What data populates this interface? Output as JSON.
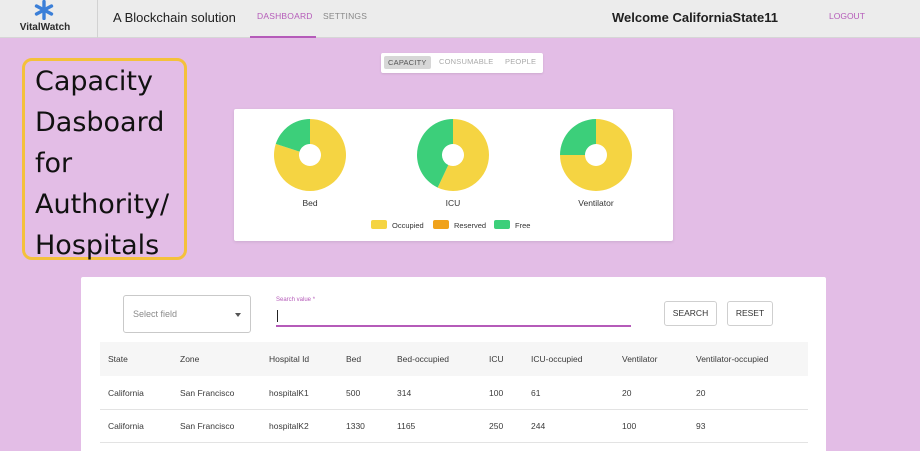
{
  "header": {
    "logo_text": "VitalWatch",
    "subtitle": "A Blockchain solution",
    "tabs": [
      "DASHBOARD",
      "SETTINGS"
    ],
    "welcome": "Welcome CaliforniaState11",
    "logout": "LOGOUT",
    "accent": "#b55bb9"
  },
  "annotation": {
    "lines": [
      "Capacity",
      "Dasboard",
      "for",
      "Authority/",
      "Hospitals"
    ],
    "border_color": "#f4c13b"
  },
  "segments": {
    "items": [
      "CAPACITY",
      "CONSUMABLE",
      "PEOPLE"
    ],
    "selected": "CAPACITY"
  },
  "chart_data": {
    "type": "pie",
    "variant": "donut",
    "charts": [
      {
        "label": "Bed",
        "occupied": 0.8,
        "reserved": 0.0,
        "free": 0.2
      },
      {
        "label": "ICU",
        "occupied": 0.57,
        "reserved": 0.0,
        "free": 0.43
      },
      {
        "label": "Ventilator",
        "occupied": 0.75,
        "reserved": 0.0,
        "free": 0.25
      }
    ],
    "legend": [
      "Occupied",
      "Reserved",
      "Free"
    ],
    "colors": {
      "occupied": "#f5d442",
      "reserved": "#f0a21b",
      "free": "#3ccf7a"
    }
  },
  "filter": {
    "select_placeholder": "Select field",
    "search_label": "Search value *",
    "search_button": "SEARCH",
    "reset_button": "RESET"
  },
  "table": {
    "columns": [
      "State",
      "Zone",
      "Hospital Id",
      "Bed",
      "Bed-occupied",
      "ICU",
      "ICU-occupied",
      "Ventilator",
      "Ventilator-occupied"
    ],
    "rows": [
      [
        "California",
        "San Francisco",
        "hospitalK1",
        "500",
        "314",
        "100",
        "61",
        "20",
        "20"
      ],
      [
        "California",
        "San Francisco",
        "hospitalK2",
        "1330",
        "1165",
        "250",
        "244",
        "100",
        "93"
      ]
    ]
  }
}
